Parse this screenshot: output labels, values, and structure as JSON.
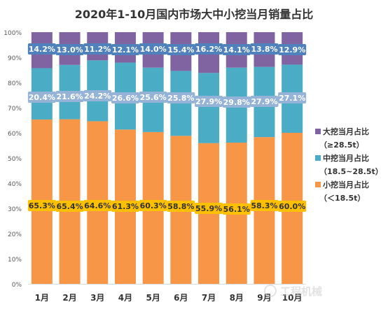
{
  "chart_data": {
    "type": "bar",
    "stacked": true,
    "percent_stacked": true,
    "title": "2020年1-10月国内市场大中小挖当月销量占比",
    "categories": [
      "1月",
      "2月",
      "3月",
      "4月",
      "5月",
      "6月",
      "7月",
      "8月",
      "9月",
      "10月"
    ],
    "y_ticks": [
      "0%",
      "10%",
      "20%",
      "30%",
      "40%",
      "50%",
      "60%",
      "70%",
      "80%",
      "90%",
      "100%"
    ],
    "ylim": [
      0,
      100
    ],
    "grid": false,
    "legend_position": "right",
    "series": [
      {
        "key": "small",
        "name": "小挖当月占比",
        "sub": "（＜18.5t）",
        "color": "#F79646",
        "label_bg": "#FFC000",
        "values": [
          65.3,
          65.4,
          64.6,
          61.3,
          60.3,
          58.8,
          55.9,
          56.1,
          58.3,
          60.0
        ],
        "labels": [
          "65.3%",
          "65.4%",
          "64.6%",
          "61.3%",
          "60.3%",
          "58.8%",
          "55.9%",
          "56.1%",
          "58.3%",
          "60.0%"
        ]
      },
      {
        "key": "medium",
        "name": "中挖当月占比",
        "sub": "（18.5~28.5t）",
        "color": "#4BACC6",
        "label_bg": "#95B3D7",
        "values": [
          20.4,
          21.6,
          24.2,
          26.6,
          25.6,
          25.8,
          27.9,
          29.8,
          27.9,
          27.1
        ],
        "labels": [
          "20.4%",
          "21.6%",
          "24.2%",
          "26.6%",
          "25.6%",
          "25.8%",
          "27.9%",
          "29.8%",
          "27.9%",
          "27.1%"
        ]
      },
      {
        "key": "large",
        "name": "大挖当月占比",
        "sub": "（≥28.5t）",
        "color": "#8064A2",
        "label_bg": "#4F81BD",
        "values": [
          14.2,
          13.0,
          11.2,
          12.1,
          14.0,
          15.4,
          16.2,
          14.1,
          13.8,
          12.9
        ],
        "labels": [
          "14.2%",
          "13.0%",
          "11.2%",
          "12.1%",
          "14.0%",
          "15.4%",
          "16.2%",
          "14.1%",
          "13.8%",
          "12.9%"
        ]
      }
    ]
  },
  "watermark": "工程机械"
}
